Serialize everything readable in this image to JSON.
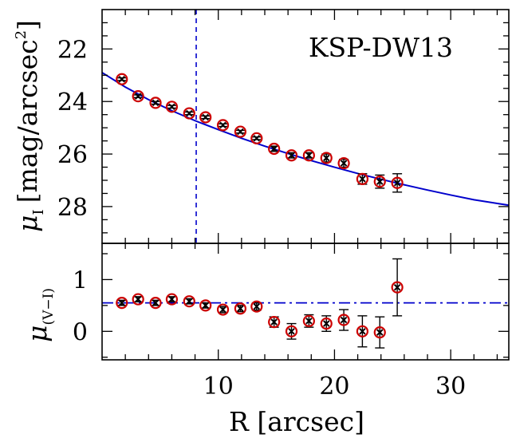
{
  "chart_data": [
    {
      "type": "scatter",
      "panel": "top",
      "title": "KSP-DW13",
      "xlabel": "",
      "ylabel": "μ",
      "ylabel_sub": "I",
      "ylabel_rest": "[mag/arcsec",
      "ylabel_sup": "2",
      "ylabel_end": "]",
      "xlim": [
        0,
        35
      ],
      "ylim": [
        29.4,
        20.5
      ],
      "y_inverted": true,
      "yticks_major": [
        22,
        24,
        26,
        28
      ],
      "ytick_labels": [
        "22",
        "24",
        "26",
        "28"
      ],
      "vertical_line_x": 8.1,
      "fit_curve": {
        "x": [
          0,
          2,
          4,
          6,
          8,
          10,
          12,
          14,
          16,
          18,
          20,
          22,
          24,
          26,
          28,
          30,
          32,
          35
        ],
        "y": [
          22.9,
          23.45,
          23.93,
          24.35,
          24.73,
          25.07,
          25.4,
          25.7,
          25.98,
          26.25,
          26.5,
          26.74,
          26.96,
          27.17,
          27.37,
          27.56,
          27.74,
          27.95
        ]
      },
      "series": [
        {
          "x": [
            1.7,
            3.1,
            4.6,
            6.0,
            7.5,
            8.9,
            10.4,
            11.9,
            13.3,
            14.8,
            16.3,
            17.8,
            19.3,
            20.8,
            22.4,
            23.9,
            25.4
          ],
          "y": [
            23.15,
            23.8,
            24.05,
            24.2,
            24.45,
            24.6,
            24.9,
            25.15,
            25.4,
            25.8,
            26.05,
            26.05,
            26.15,
            26.35,
            26.95,
            27.05,
            27.1
          ],
          "yerr": [
            0.05,
            0.05,
            0.05,
            0.05,
            0.05,
            0.05,
            0.05,
            0.05,
            0.05,
            0.1,
            0.1,
            0.1,
            0.15,
            0.15,
            0.2,
            0.25,
            0.35
          ]
        }
      ]
    },
    {
      "type": "scatter",
      "panel": "bottom",
      "xlabel": "R [arcsec]",
      "ylabel": "μ",
      "ylabel_sub": "(V−I)",
      "xlim": [
        0,
        35
      ],
      "ylim": [
        -0.55,
        1.7
      ],
      "xticks_major": [
        10,
        20,
        30
      ],
      "xtick_labels": [
        "10",
        "20",
        "30"
      ],
      "yticks_major": [
        0,
        1
      ],
      "ytick_labels": [
        "0",
        "1"
      ],
      "horizontal_line_y": 0.55,
      "series": [
        {
          "x": [
            1.7,
            3.1,
            4.6,
            6.0,
            7.5,
            8.9,
            10.4,
            11.9,
            13.3,
            14.8,
            16.3,
            17.8,
            19.3,
            20.8,
            22.4,
            23.9,
            25.4
          ],
          "y": [
            0.55,
            0.62,
            0.55,
            0.62,
            0.58,
            0.5,
            0.42,
            0.44,
            0.48,
            0.18,
            0.0,
            0.2,
            0.15,
            0.22,
            0.0,
            -0.02,
            0.85
          ],
          "yerr": [
            0.05,
            0.05,
            0.05,
            0.05,
            0.05,
            0.05,
            0.06,
            0.06,
            0.07,
            0.1,
            0.15,
            0.12,
            0.15,
            0.2,
            0.3,
            0.3,
            0.55
          ]
        }
      ]
    }
  ],
  "colors": {
    "fit_line": "#0000cc",
    "marker_circle": "#cc0000",
    "marker_cross": "#000000",
    "axes": "#000000"
  }
}
